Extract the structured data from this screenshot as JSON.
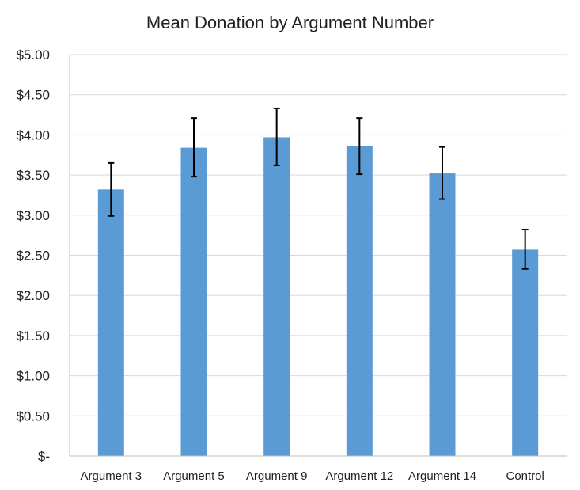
{
  "chart_data": {
    "type": "bar",
    "title": "Mean Donation by Argument Number",
    "xlabel": "",
    "ylabel": "",
    "categories": [
      "Argument 3",
      "Argument 5",
      "Argument 9",
      "Argument 12",
      "Argument 14",
      "Control"
    ],
    "values": [
      3.32,
      3.84,
      3.97,
      3.86,
      3.52,
      2.57
    ],
    "error_bars": [
      {
        "low": 2.99,
        "high": 3.65
      },
      {
        "low": 3.48,
        "high": 4.21
      },
      {
        "low": 3.62,
        "high": 4.33
      },
      {
        "low": 3.51,
        "high": 4.21
      },
      {
        "low": 3.2,
        "high": 3.85
      },
      {
        "low": 2.33,
        "high": 2.82
      }
    ],
    "ylim": [
      0,
      5
    ],
    "y_ticks": [
      0,
      0.5,
      1,
      1.5,
      2,
      2.5,
      3,
      3.5,
      4,
      4.5,
      5
    ],
    "y_tick_labels": [
      "$-",
      "$0.50",
      "$1.00",
      "$1.50",
      "$2.00",
      "$2.50",
      "$3.00",
      "$3.50",
      "$4.00",
      "$4.50",
      "$5.00"
    ],
    "grid": true,
    "legend": "none",
    "colors": {
      "bar": "#5b9bd5",
      "grid": "#d9d9d9",
      "axis": "#bfbfbf",
      "error_bar": "#000000"
    }
  }
}
